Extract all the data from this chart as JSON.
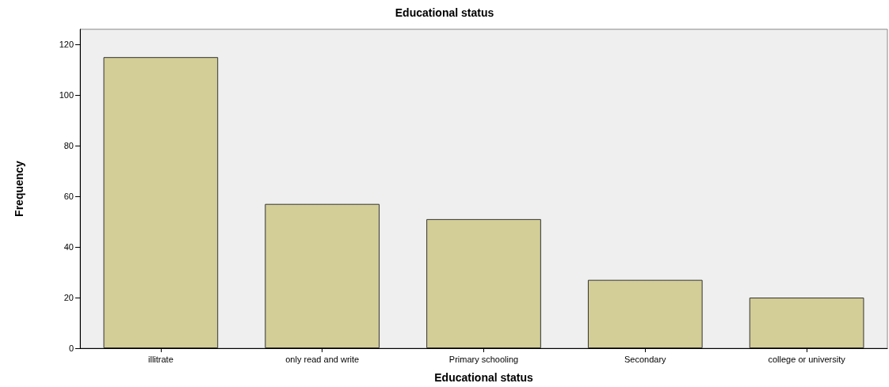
{
  "chart_data": {
    "type": "bar",
    "title": "Educational status",
    "xlabel": "Educational status",
    "ylabel": "Frequency",
    "categories": [
      "illitrate",
      "only read and write",
      "Primary schooling",
      "Secondary",
      "college or university"
    ],
    "values": [
      115,
      57,
      51,
      27,
      20
    ],
    "color": "#d3cd97",
    "ylim": [
      0,
      126
    ],
    "yticks": [
      0,
      20,
      40,
      60,
      80,
      100,
      120
    ],
    "grid": false
  }
}
